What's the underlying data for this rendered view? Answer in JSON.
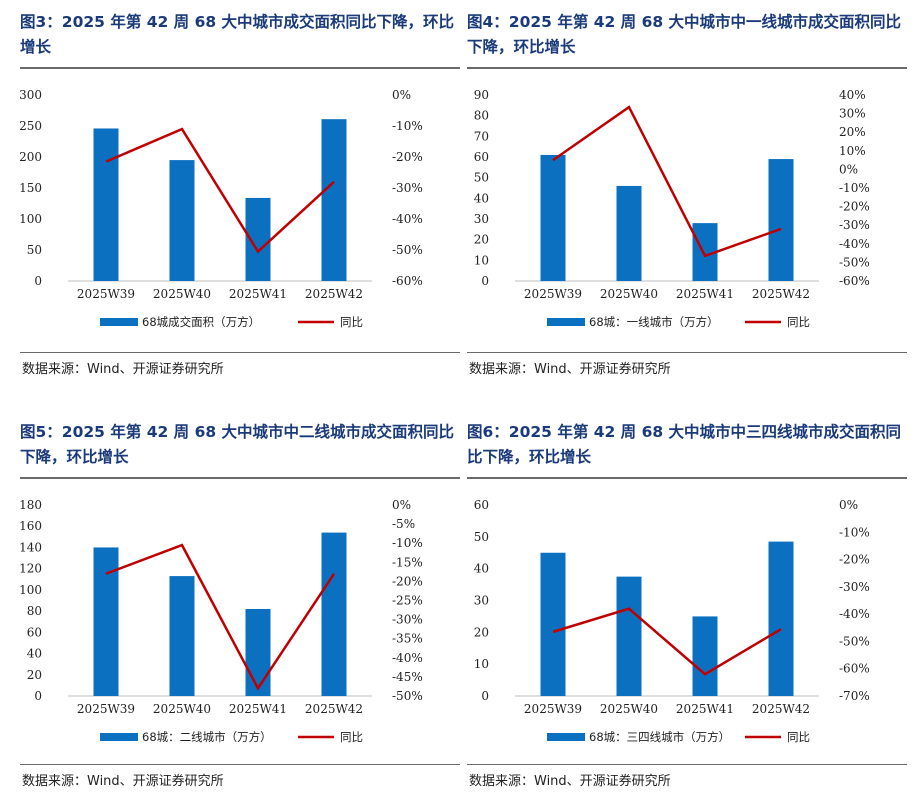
{
  "source_text": "数据来源：Wind、开源证券研究所",
  "colors": {
    "bar": "#0b70c0",
    "line": "#c00000",
    "title": "#1a3a7a",
    "rule": "#6a6a6a"
  },
  "chart_data": [
    {
      "type": "bar",
      "title": "图3：2025 年第 42 周 68 大中城市成交面积同比下降，环比增长",
      "categories": [
        "2025W39",
        "2025W40",
        "2025W41",
        "2025W42"
      ],
      "series": [
        {
          "name": "68城成交面积（万方）",
          "type": "bar",
          "axis": "left",
          "values": [
            246,
            195,
            134,
            261
          ]
        },
        {
          "name": "同比",
          "type": "line",
          "axis": "right",
          "values": [
            -21.5,
            -11,
            -50.5,
            -28
          ]
        }
      ],
      "left_axis": {
        "ylim": [
          0,
          300
        ],
        "ticks": [
          "0",
          "50",
          "100",
          "150",
          "200",
          "250",
          "300"
        ]
      },
      "right_axis": {
        "ylim": [
          -60,
          0
        ],
        "ticks": [
          "-60%",
          "-50%",
          "-40%",
          "-30%",
          "-20%",
          "-10%",
          "0%"
        ]
      }
    },
    {
      "type": "bar",
      "title": "图4：2025 年第 42 周 68 大中城市中一线城市成交面积同比下降，环比增长",
      "categories": [
        "2025W39",
        "2025W40",
        "2025W41",
        "2025W42"
      ],
      "series": [
        {
          "name": "68城：一线城市（万方）",
          "type": "bar",
          "axis": "left",
          "values": [
            61,
            46,
            28,
            59
          ]
        },
        {
          "name": "同比",
          "type": "line",
          "axis": "right",
          "values": [
            5,
            33.5,
            -46.5,
            -32
          ]
        }
      ],
      "left_axis": {
        "ylim": [
          0,
          90
        ],
        "ticks": [
          "0",
          "10",
          "20",
          "30",
          "40",
          "50",
          "60",
          "70",
          "80",
          "90"
        ]
      },
      "right_axis": {
        "ylim": [
          -60,
          40
        ],
        "ticks": [
          "-60%",
          "-50%",
          "-40%",
          "-30%",
          "-20%",
          "-10%",
          "0%",
          "10%",
          "20%",
          "30%",
          "40%"
        ]
      }
    },
    {
      "type": "bar",
      "title": "图5：2025 年第 42 周 68 大中城市中二线城市成交面积同比下降，环比增长",
      "categories": [
        "2025W39",
        "2025W40",
        "2025W41",
        "2025W42"
      ],
      "series": [
        {
          "name": "68城：二线城市（万方）",
          "type": "bar",
          "axis": "left",
          "values": [
            140,
            113,
            82,
            154
          ]
        },
        {
          "name": "同比",
          "type": "line",
          "axis": "right",
          "values": [
            -18,
            -10.5,
            -48,
            -18
          ]
        }
      ],
      "left_axis": {
        "ylim": [
          0,
          180
        ],
        "ticks": [
          "0",
          "20",
          "40",
          "60",
          "80",
          "100",
          "120",
          "140",
          "160",
          "180"
        ]
      },
      "right_axis": {
        "ylim": [
          -50,
          0
        ],
        "ticks": [
          "-50%",
          "-45%",
          "-40%",
          "-35%",
          "-30%",
          "-25%",
          "-20%",
          "-15%",
          "-10%",
          "-5%",
          "0%"
        ]
      }
    },
    {
      "type": "bar",
      "title": "图6：2025 年第 42 周 68 大中城市中三四线城市成交面积同比下降，环比增长",
      "categories": [
        "2025W39",
        "2025W40",
        "2025W41",
        "2025W42"
      ],
      "series": [
        {
          "name": "68城：三四线城市（万方）",
          "type": "bar",
          "axis": "left",
          "values": [
            45,
            37.5,
            25,
            48.5
          ]
        },
        {
          "name": "同比",
          "type": "line",
          "axis": "right",
          "values": [
            -46.5,
            -38,
            -62,
            -45.5
          ]
        }
      ],
      "left_axis": {
        "ylim": [
          0,
          60
        ],
        "ticks": [
          "0",
          "10",
          "20",
          "30",
          "40",
          "50",
          "60"
        ]
      },
      "right_axis": {
        "ylim": [
          -70,
          0
        ],
        "ticks": [
          "-70%",
          "-60%",
          "-50%",
          "-40%",
          "-30%",
          "-20%",
          "-10%",
          "0%"
        ]
      }
    }
  ]
}
